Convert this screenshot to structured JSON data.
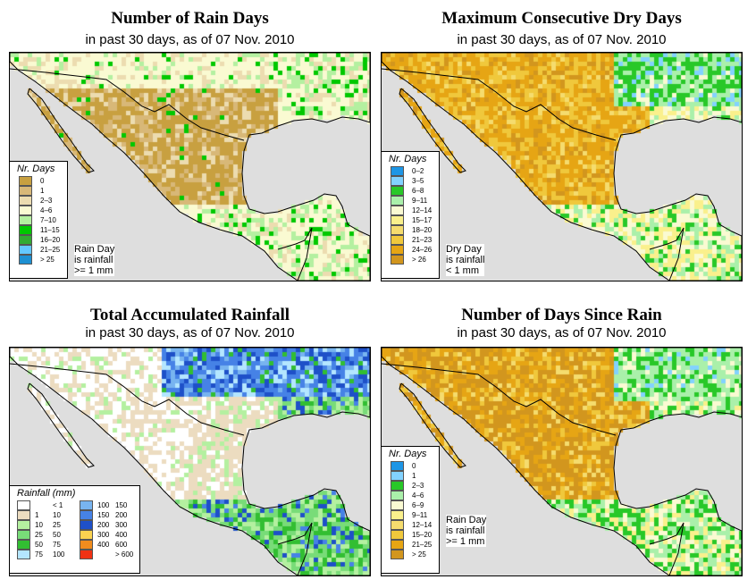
{
  "panels": [
    {
      "title": "Number of Rain Days",
      "subtitle": "in past 30 days, as of  07 Nov. 2010",
      "legend_title": "Nr. Days",
      "legend": [
        {
          "label": "0",
          "color": "#c8a040"
        },
        {
          "label": "1",
          "color": "#d8b878"
        },
        {
          "label": "2–3",
          "color": "#ecdcb0"
        },
        {
          "label": "4–6",
          "color": "#fafad2"
        },
        {
          "label": "7–10",
          "color": "#b4f0a0"
        },
        {
          "label": "11–15",
          "color": "#00c800"
        },
        {
          "label": "16–20",
          "color": "#32aa32"
        },
        {
          "label": "21–25",
          "color": "#64c8ff"
        },
        {
          "label": "> 25",
          "color": "#1e90d2"
        }
      ],
      "note": [
        "Rain Day",
        "is rainfall",
        ">= 1 mm"
      ]
    },
    {
      "title": "Maximum Consecutive Dry Days",
      "subtitle": "in past 30 days, as of  07 Nov. 2010",
      "legend_title": "Nr. Days",
      "legend": [
        {
          "label": "0–2",
          "color": "#1e96e6"
        },
        {
          "label": "3–5",
          "color": "#82d2ff"
        },
        {
          "label": "6–8",
          "color": "#28c828"
        },
        {
          "label": "9–11",
          "color": "#aaf0aa"
        },
        {
          "label": "12–14",
          "color": "#fafad2"
        },
        {
          "label": "15–17",
          "color": "#faf08c"
        },
        {
          "label": "18–20",
          "color": "#f5dc6e"
        },
        {
          "label": "21–23",
          "color": "#f0c83c"
        },
        {
          "label": "24–26",
          "color": "#e6a514"
        },
        {
          "label": "> 26",
          "color": "#d2961e"
        }
      ],
      "note": [
        "Dry Day",
        "is rainfall",
        "< 1 mm"
      ]
    },
    {
      "title": "Total Accumulated Rainfall",
      "subtitle": "in past 30 days, as of  07 Nov. 2010",
      "legend_title": "Rainfall (mm)",
      "legend_cols": [
        [
          {
            "from": "",
            "to": "< 1",
            "color": "#ffffff"
          },
          {
            "from": "1",
            "to": "10",
            "color": "#ecdcc0"
          },
          {
            "from": "10",
            "to": "25",
            "color": "#b4f0a0"
          },
          {
            "from": "25",
            "to": "50",
            "color": "#78dc78"
          },
          {
            "from": "50",
            "to": "75",
            "color": "#32be32"
          },
          {
            "from": "75",
            "to": "100",
            "color": "#b4e6ff"
          }
        ],
        [
          {
            "from": "100",
            "to": "150",
            "color": "#78b4f0"
          },
          {
            "from": "150",
            "to": "200",
            "color": "#4682e6"
          },
          {
            "from": "200",
            "to": "300",
            "color": "#1e50c8"
          },
          {
            "from": "300",
            "to": "400",
            "color": "#fad250"
          },
          {
            "from": "400",
            "to": "600",
            "color": "#f08c1e"
          },
          {
            "from": "",
            "to": "> 600",
            "color": "#f03214"
          }
        ]
      ]
    },
    {
      "title": "Number of Days Since Rain",
      "subtitle": "in past 30 days, as of  07 Nov. 2010",
      "legend_title": "Nr. Days",
      "legend": [
        {
          "label": "0",
          "color": "#1e96e6"
        },
        {
          "label": "1",
          "color": "#82d2ff"
        },
        {
          "label": "2–3",
          "color": "#28c828"
        },
        {
          "label": "4–6",
          "color": "#aaf0aa"
        },
        {
          "label": "6–9",
          "color": "#fafad2"
        },
        {
          "label": "9–11",
          "color": "#faf08c"
        },
        {
          "label": "12–14",
          "color": "#f5dc6e"
        },
        {
          "label": "15–20",
          "color": "#f0c83c"
        },
        {
          "label": "21–25",
          "color": "#e6a514"
        },
        {
          "label": "> 25",
          "color": "#d2961e"
        }
      ],
      "note": [
        "Rain Day",
        "is rainfall",
        ">= 1 mm"
      ]
    }
  ]
}
